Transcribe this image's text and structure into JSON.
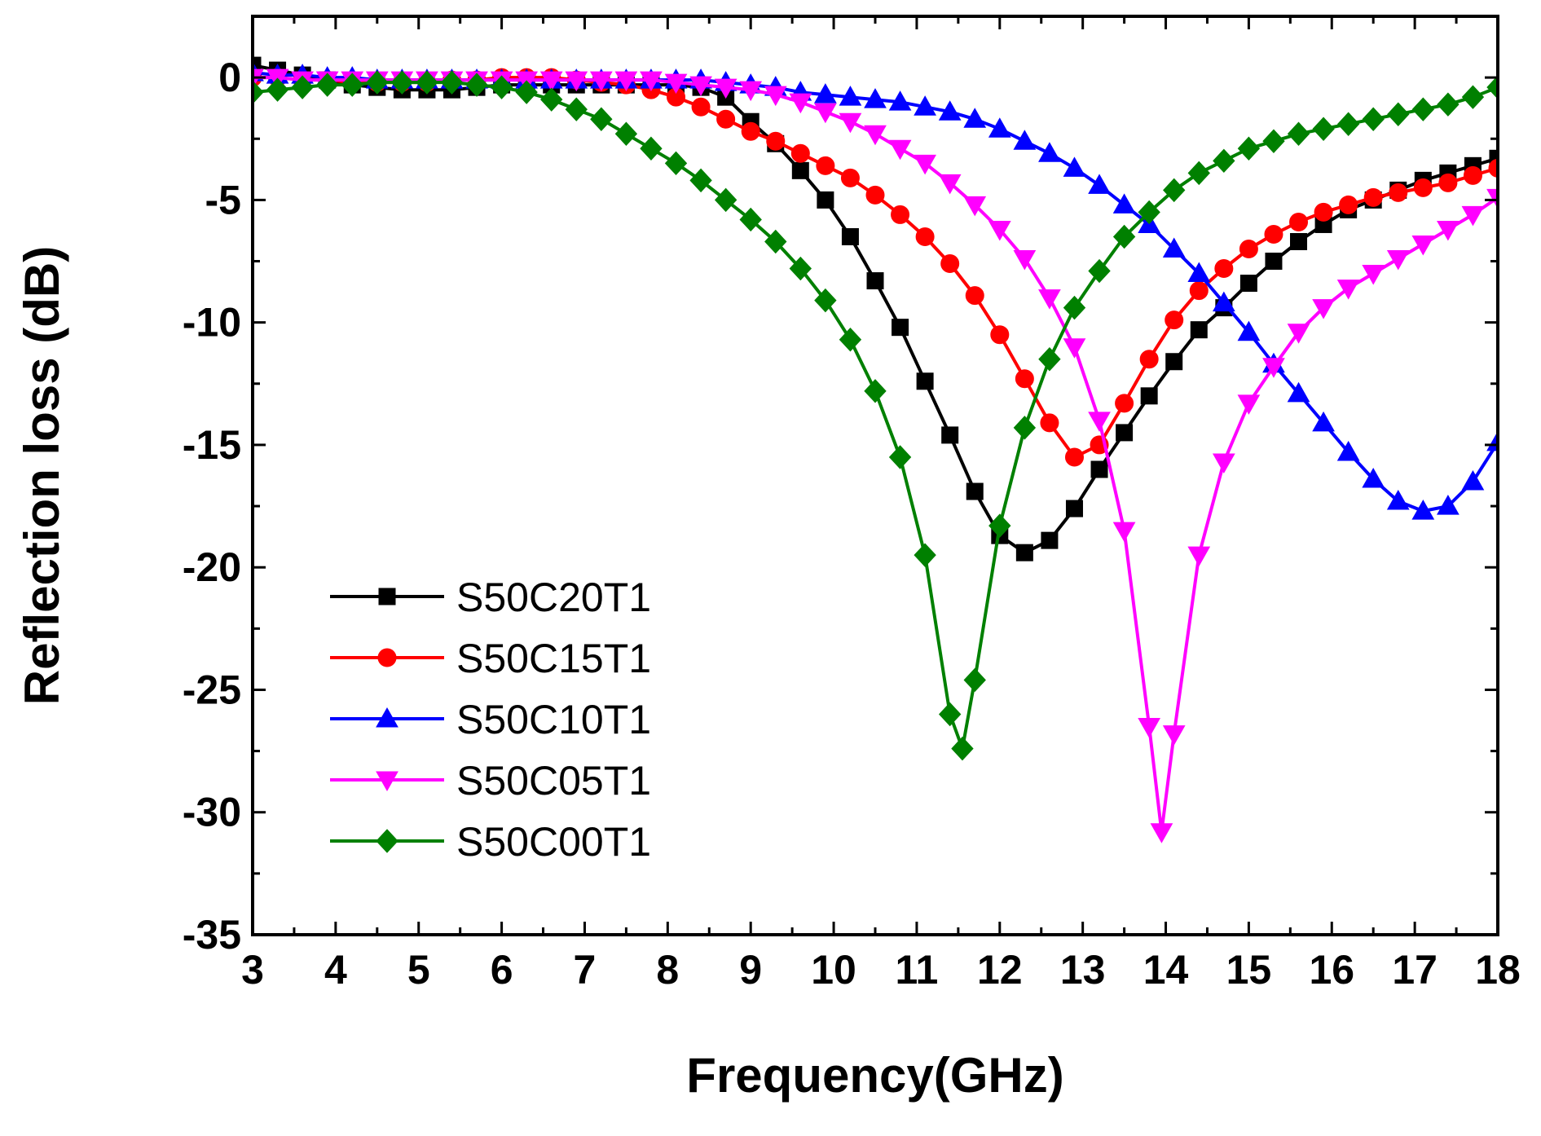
{
  "chart_data": {
    "type": "line",
    "title": "",
    "xlabel": "Frequency(GHz)",
    "ylabel": "Reflection loss (dB)",
    "xlim": [
      3,
      18
    ],
    "ylim": [
      -35,
      2.5
    ],
    "xticks": [
      3,
      4,
      5,
      6,
      7,
      8,
      9,
      10,
      11,
      12,
      13,
      14,
      15,
      16,
      17,
      18
    ],
    "yticks": [
      0,
      -5,
      -10,
      -15,
      -20,
      -25,
      -30,
      -35
    ],
    "xtick_labels": [
      "3",
      "4",
      "5",
      "6",
      "7",
      "8",
      "9",
      "10",
      "11",
      "12",
      "13",
      "14",
      "15",
      "16",
      "17",
      "18"
    ],
    "ytick_labels": [
      "0",
      "-5",
      "-10",
      "-15",
      "-20",
      "-25",
      "-30",
      "-35"
    ],
    "legend_position": "lower-left",
    "series": [
      {
        "name": "S50C20T1",
        "color": "#000000",
        "marker": "square",
        "points": [
          [
            3,
            0.5
          ],
          [
            3.3,
            0.3
          ],
          [
            3.6,
            0.1
          ],
          [
            3.9,
            -0.1
          ],
          [
            4.2,
            -0.3
          ],
          [
            4.5,
            -0.4
          ],
          [
            4.8,
            -0.5
          ],
          [
            5.1,
            -0.5
          ],
          [
            5.4,
            -0.5
          ],
          [
            5.7,
            -0.4
          ],
          [
            6,
            -0.3
          ],
          [
            6.3,
            -0.3
          ],
          [
            6.6,
            -0.3
          ],
          [
            6.9,
            -0.3
          ],
          [
            7.2,
            -0.3
          ],
          [
            7.5,
            -0.3
          ],
          [
            7.8,
            -0.3
          ],
          [
            8.1,
            -0.3
          ],
          [
            8.4,
            -0.4
          ],
          [
            8.7,
            -0.8
          ],
          [
            9,
            -1.8
          ],
          [
            9.3,
            -2.7
          ],
          [
            9.6,
            -3.8
          ],
          [
            9.9,
            -5.0
          ],
          [
            10.2,
            -6.5
          ],
          [
            10.5,
            -8.3
          ],
          [
            10.8,
            -10.2
          ],
          [
            11.1,
            -12.4
          ],
          [
            11.4,
            -14.6
          ],
          [
            11.7,
            -16.9
          ],
          [
            12,
            -18.7
          ],
          [
            12.3,
            -19.4
          ],
          [
            12.6,
            -18.9
          ],
          [
            12.9,
            -17.6
          ],
          [
            13.2,
            -16.0
          ],
          [
            13.5,
            -14.5
          ],
          [
            13.8,
            -13.0
          ],
          [
            14.1,
            -11.6
          ],
          [
            14.4,
            -10.3
          ],
          [
            14.7,
            -9.4
          ],
          [
            15,
            -8.4
          ],
          [
            15.3,
            -7.5
          ],
          [
            15.6,
            -6.7
          ],
          [
            15.9,
            -6.0
          ],
          [
            16.2,
            -5.4
          ],
          [
            16.5,
            -5.0
          ],
          [
            16.8,
            -4.6
          ],
          [
            17.1,
            -4.2
          ],
          [
            17.4,
            -3.9
          ],
          [
            17.7,
            -3.6
          ],
          [
            18,
            -3.3
          ]
        ]
      },
      {
        "name": "S50C15T1",
        "color": "#ff0000",
        "marker": "circle",
        "points": [
          [
            3,
            0.0
          ],
          [
            3.3,
            0.0
          ],
          [
            3.6,
            -0.1
          ],
          [
            3.9,
            -0.1
          ],
          [
            4.2,
            -0.2
          ],
          [
            4.5,
            -0.2
          ],
          [
            4.8,
            -0.2
          ],
          [
            5.1,
            -0.2
          ],
          [
            5.4,
            -0.1
          ],
          [
            5.7,
            -0.1
          ],
          [
            6,
            0.0
          ],
          [
            6.3,
            0.0
          ],
          [
            6.6,
            0.0
          ],
          [
            6.9,
            -0.1
          ],
          [
            7.2,
            -0.2
          ],
          [
            7.5,
            -0.3
          ],
          [
            7.8,
            -0.5
          ],
          [
            8.1,
            -0.8
          ],
          [
            8.4,
            -1.2
          ],
          [
            8.7,
            -1.7
          ],
          [
            9,
            -2.2
          ],
          [
            9.3,
            -2.6
          ],
          [
            9.6,
            -3.1
          ],
          [
            9.9,
            -3.6
          ],
          [
            10.2,
            -4.1
          ],
          [
            10.5,
            -4.8
          ],
          [
            10.8,
            -5.6
          ],
          [
            11.1,
            -6.5
          ],
          [
            11.4,
            -7.6
          ],
          [
            11.7,
            -8.9
          ],
          [
            12,
            -10.5
          ],
          [
            12.3,
            -12.3
          ],
          [
            12.6,
            -14.1
          ],
          [
            12.9,
            -15.5
          ],
          [
            13.2,
            -15.0
          ],
          [
            13.5,
            -13.3
          ],
          [
            13.8,
            -11.5
          ],
          [
            14.1,
            -9.9
          ],
          [
            14.4,
            -8.7
          ],
          [
            14.7,
            -7.8
          ],
          [
            15,
            -7.0
          ],
          [
            15.3,
            -6.4
          ],
          [
            15.6,
            -5.9
          ],
          [
            15.9,
            -5.5
          ],
          [
            16.2,
            -5.2
          ],
          [
            16.5,
            -4.9
          ],
          [
            16.8,
            -4.7
          ],
          [
            17.1,
            -4.5
          ],
          [
            17.4,
            -4.3
          ],
          [
            17.7,
            -4.0
          ],
          [
            18,
            -3.7
          ]
        ]
      },
      {
        "name": "S50C10T1",
        "color": "#0000ff",
        "marker": "triangle-up",
        "points": [
          [
            3,
            0.2
          ],
          [
            3.3,
            0.1
          ],
          [
            3.6,
            0.1
          ],
          [
            3.9,
            0.0
          ],
          [
            4.2,
            0.0
          ],
          [
            4.5,
            -0.1
          ],
          [
            4.8,
            -0.1
          ],
          [
            5.1,
            -0.1
          ],
          [
            5.4,
            -0.1
          ],
          [
            5.7,
            -0.1
          ],
          [
            6,
            -0.1
          ],
          [
            6.3,
            -0.1
          ],
          [
            6.6,
            -0.1
          ],
          [
            6.9,
            -0.1
          ],
          [
            7.2,
            -0.1
          ],
          [
            7.5,
            -0.1
          ],
          [
            7.8,
            -0.1
          ],
          [
            8.1,
            -0.1
          ],
          [
            8.4,
            -0.1
          ],
          [
            8.7,
            -0.2
          ],
          [
            9,
            -0.3
          ],
          [
            9.3,
            -0.4
          ],
          [
            9.6,
            -0.6
          ],
          [
            9.9,
            -0.7
          ],
          [
            10.2,
            -0.8
          ],
          [
            10.5,
            -0.9
          ],
          [
            10.8,
            -1.0
          ],
          [
            11.1,
            -1.2
          ],
          [
            11.4,
            -1.4
          ],
          [
            11.7,
            -1.7
          ],
          [
            12,
            -2.1
          ],
          [
            12.3,
            -2.6
          ],
          [
            12.6,
            -3.1
          ],
          [
            12.9,
            -3.7
          ],
          [
            13.2,
            -4.4
          ],
          [
            13.5,
            -5.2
          ],
          [
            13.8,
            -6.0
          ],
          [
            14.1,
            -7.0
          ],
          [
            14.4,
            -8.0
          ],
          [
            14.7,
            -9.2
          ],
          [
            15,
            -10.4
          ],
          [
            15.3,
            -11.7
          ],
          [
            15.6,
            -12.9
          ],
          [
            15.9,
            -14.1
          ],
          [
            16.2,
            -15.3
          ],
          [
            16.5,
            -16.4
          ],
          [
            16.8,
            -17.3
          ],
          [
            17.1,
            -17.7
          ],
          [
            17.4,
            -17.5
          ],
          [
            17.7,
            -16.5
          ],
          [
            18,
            -14.9
          ]
        ]
      },
      {
        "name": "S50C05T1",
        "color": "#ff00ff",
        "marker": "triangle-down",
        "points": [
          [
            3,
            0.0
          ],
          [
            3.3,
            0.0
          ],
          [
            3.6,
            -0.1
          ],
          [
            3.9,
            -0.1
          ],
          [
            4.2,
            -0.1
          ],
          [
            4.5,
            -0.1
          ],
          [
            4.8,
            -0.1
          ],
          [
            5.1,
            -0.1
          ],
          [
            5.4,
            -0.1
          ],
          [
            5.7,
            -0.1
          ],
          [
            6,
            -0.1
          ],
          [
            6.3,
            -0.1
          ],
          [
            6.6,
            -0.1
          ],
          [
            6.9,
            -0.1
          ],
          [
            7.2,
            -0.1
          ],
          [
            7.5,
            -0.1
          ],
          [
            7.8,
            -0.1
          ],
          [
            8.1,
            -0.2
          ],
          [
            8.4,
            -0.3
          ],
          [
            8.7,
            -0.4
          ],
          [
            9,
            -0.5
          ],
          [
            9.3,
            -0.7
          ],
          [
            9.6,
            -1.0
          ],
          [
            9.9,
            -1.4
          ],
          [
            10.2,
            -1.8
          ],
          [
            10.5,
            -2.3
          ],
          [
            10.8,
            -2.9
          ],
          [
            11.1,
            -3.5
          ],
          [
            11.4,
            -4.3
          ],
          [
            11.7,
            -5.2
          ],
          [
            12,
            -6.2
          ],
          [
            12.3,
            -7.4
          ],
          [
            12.6,
            -9.0
          ],
          [
            12.9,
            -11.0
          ],
          [
            13.2,
            -14.0
          ],
          [
            13.5,
            -18.5
          ],
          [
            13.8,
            -26.5
          ],
          [
            13.95,
            -30.8
          ],
          [
            14.1,
            -26.8
          ],
          [
            14.4,
            -19.5
          ],
          [
            14.7,
            -15.7
          ],
          [
            15,
            -13.3
          ],
          [
            15.3,
            -11.8
          ],
          [
            15.6,
            -10.4
          ],
          [
            15.9,
            -9.4
          ],
          [
            16.2,
            -8.6
          ],
          [
            16.5,
            -8.0
          ],
          [
            16.8,
            -7.4
          ],
          [
            17.1,
            -6.8
          ],
          [
            17.4,
            -6.2
          ],
          [
            17.7,
            -5.6
          ],
          [
            18,
            -4.9
          ]
        ]
      },
      {
        "name": "S50C00T1",
        "color": "#008000",
        "marker": "diamond",
        "points": [
          [
            3,
            -0.6
          ],
          [
            3.3,
            -0.5
          ],
          [
            3.6,
            -0.4
          ],
          [
            3.9,
            -0.3
          ],
          [
            4.2,
            -0.3
          ],
          [
            4.5,
            -0.2
          ],
          [
            4.8,
            -0.2
          ],
          [
            5.1,
            -0.2
          ],
          [
            5.4,
            -0.2
          ],
          [
            5.7,
            -0.3
          ],
          [
            6,
            -0.4
          ],
          [
            6.3,
            -0.6
          ],
          [
            6.6,
            -0.9
          ],
          [
            6.9,
            -1.3
          ],
          [
            7.2,
            -1.7
          ],
          [
            7.5,
            -2.3
          ],
          [
            7.8,
            -2.9
          ],
          [
            8.1,
            -3.5
          ],
          [
            8.4,
            -4.2
          ],
          [
            8.7,
            -5.0
          ],
          [
            9,
            -5.8
          ],
          [
            9.3,
            -6.7
          ],
          [
            9.6,
            -7.8
          ],
          [
            9.9,
            -9.1
          ],
          [
            10.2,
            -10.7
          ],
          [
            10.5,
            -12.8
          ],
          [
            10.8,
            -15.5
          ],
          [
            11.1,
            -19.5
          ],
          [
            11.4,
            -26.0
          ],
          [
            11.55,
            -27.4
          ],
          [
            11.7,
            -24.6
          ],
          [
            12,
            -18.3
          ],
          [
            12.3,
            -14.3
          ],
          [
            12.6,
            -11.5
          ],
          [
            12.9,
            -9.4
          ],
          [
            13.2,
            -7.9
          ],
          [
            13.5,
            -6.5
          ],
          [
            13.8,
            -5.5
          ],
          [
            14.1,
            -4.6
          ],
          [
            14.4,
            -3.9
          ],
          [
            14.7,
            -3.4
          ],
          [
            15,
            -2.9
          ],
          [
            15.3,
            -2.6
          ],
          [
            15.6,
            -2.3
          ],
          [
            15.9,
            -2.1
          ],
          [
            16.2,
            -1.9
          ],
          [
            16.5,
            -1.7
          ],
          [
            16.8,
            -1.5
          ],
          [
            17.1,
            -1.3
          ],
          [
            17.4,
            -1.1
          ],
          [
            17.7,
            -0.8
          ],
          [
            18,
            -0.4
          ]
        ]
      }
    ]
  }
}
